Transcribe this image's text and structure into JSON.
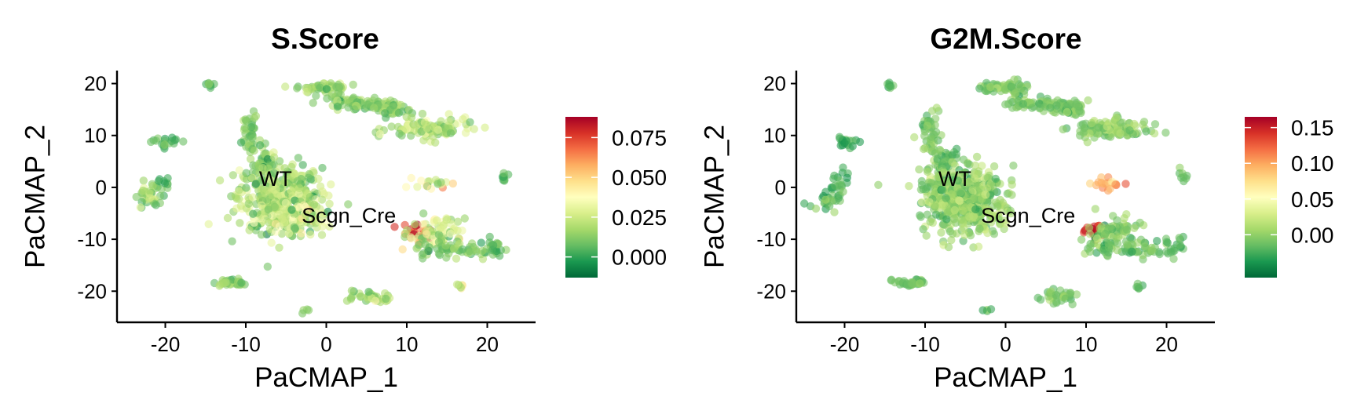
{
  "colorscale": [
    "#006837",
    "#1a9850",
    "#66bd63",
    "#a6d96a",
    "#d9ef8b",
    "#ffffbf",
    "#fee08b",
    "#fdae61",
    "#f46d43",
    "#d73027",
    "#a50026"
  ],
  "chart_data": [
    {
      "type": "scatter",
      "title": "S.Score",
      "xlabel": "PaCMAP_1",
      "ylabel": "PaCMAP_2",
      "xlim": [
        -26,
        26
      ],
      "ylim": [
        -26,
        22.5
      ],
      "xticks": [
        -20,
        -10,
        0,
        10,
        20
      ],
      "yticks": [
        -20,
        -10,
        0,
        10,
        20
      ],
      "xtick_labels": [
        "-20",
        "-10",
        "0",
        "10",
        "20"
      ],
      "ytick_labels": [
        "-20",
        "-10",
        "0",
        "10",
        "20"
      ],
      "color_range": [
        -0.013,
        0.088
      ],
      "colorbar_ticks": [
        0.0,
        0.025,
        0.05,
        0.075
      ],
      "colorbar_labels": [
        "0.000",
        "0.025",
        "0.050",
        "0.075"
      ],
      "annotations": [
        {
          "text": "WT",
          "x": -6.3,
          "y": 1.8
        },
        {
          "text": "Scgn_Cre",
          "x": 2.8,
          "y": -5.3
        }
      ],
      "clusters": [
        {
          "x": -14.5,
          "y": 19.8,
          "sx": 0.4,
          "sy": 0.3,
          "n": 8,
          "mean": 0.008,
          "sd": 0.005
        },
        {
          "x": -19.8,
          "y": 8.8,
          "sx": 1.0,
          "sy": 0.5,
          "n": 18,
          "mean": 0.006,
          "sd": 0.004
        },
        {
          "x": -20.6,
          "y": 0.8,
          "sx": 0.6,
          "sy": 1.2,
          "n": 14,
          "mean": 0.005,
          "sd": 0.004
        },
        {
          "x": -22.2,
          "y": -2.2,
          "sx": 0.8,
          "sy": 1.4,
          "n": 30,
          "mean": 0.014,
          "sd": 0.008
        },
        {
          "x": -9.5,
          "y": 10.5,
          "sx": 0.5,
          "sy": 2.2,
          "n": 40,
          "mean": 0.012,
          "sd": 0.006
        },
        {
          "x": -7.7,
          "y": 4.5,
          "sx": 0.7,
          "sy": 2.2,
          "n": 45,
          "mean": 0.012,
          "sd": 0.006
        },
        {
          "x": -5.8,
          "y": -2.0,
          "sx": 2.6,
          "sy": 3.3,
          "n": 420,
          "mean": 0.017,
          "sd": 0.009
        },
        {
          "x": -3.5,
          "y": -5.5,
          "sx": 1.8,
          "sy": 1.6,
          "n": 60,
          "mean": 0.026,
          "sd": 0.012
        },
        {
          "x": -0.6,
          "y": 19.2,
          "sx": 1.5,
          "sy": 0.5,
          "n": 50,
          "mean": 0.014,
          "sd": 0.006
        },
        {
          "x": 1.5,
          "y": 17.5,
          "sx": 0.5,
          "sy": 1.5,
          "n": 20,
          "mean": 0.012,
          "sd": 0.006
        },
        {
          "x": 4.0,
          "y": 16.2,
          "sx": 1.5,
          "sy": 0.5,
          "n": 40,
          "mean": 0.014,
          "sd": 0.006
        },
        {
          "x": 6.8,
          "y": 15.6,
          "sx": 1.4,
          "sy": 0.6,
          "n": 40,
          "mean": 0.013,
          "sd": 0.006
        },
        {
          "x": 8.5,
          "y": 14.8,
          "sx": 0.8,
          "sy": 0.7,
          "n": 20,
          "mean": 0.012,
          "sd": 0.006
        },
        {
          "x": 13.0,
          "y": 11.2,
          "sx": 2.6,
          "sy": 1.0,
          "n": 110,
          "mean": 0.019,
          "sd": 0.01
        },
        {
          "x": 12.6,
          "y": 0.7,
          "sx": 1.2,
          "sy": 0.5,
          "n": 18,
          "mean": 0.028,
          "sd": 0.015
        },
        {
          "x": 22.1,
          "y": 2.1,
          "sx": 0.3,
          "sy": 0.6,
          "n": 8,
          "mean": 0.007,
          "sd": 0.005
        },
        {
          "x": 11.2,
          "y": -8.5,
          "sx": 0.9,
          "sy": 0.7,
          "n": 24,
          "mean": 0.078,
          "sd": 0.008
        },
        {
          "x": 12.8,
          "y": -9.5,
          "sx": 1.3,
          "sy": 1.6,
          "n": 50,
          "mean": 0.025,
          "sd": 0.014
        },
        {
          "x": 14.8,
          "y": -8.0,
          "sx": 1.2,
          "sy": 1.0,
          "n": 30,
          "mean": 0.018,
          "sd": 0.01
        },
        {
          "x": 16.5,
          "y": -12.0,
          "sx": 2.8,
          "sy": 0.7,
          "n": 60,
          "mean": 0.01,
          "sd": 0.006
        },
        {
          "x": 21.0,
          "y": -11.5,
          "sx": 0.7,
          "sy": 1.0,
          "n": 16,
          "mean": 0.006,
          "sd": 0.004
        },
        {
          "x": 16.6,
          "y": -19.0,
          "sx": 0.2,
          "sy": 0.5,
          "n": 6,
          "mean": 0.045,
          "sd": 0.012
        },
        {
          "x": -11.8,
          "y": -18.3,
          "sx": 1.3,
          "sy": 0.4,
          "n": 34,
          "mean": 0.014,
          "sd": 0.006
        },
        {
          "x": 5.9,
          "y": -21.2,
          "sx": 1.3,
          "sy": 0.6,
          "n": 34,
          "mean": 0.018,
          "sd": 0.008
        },
        {
          "x": -2.4,
          "y": -23.8,
          "sx": 0.3,
          "sy": 0.3,
          "n": 4,
          "mean": 0.01,
          "sd": 0.005
        }
      ]
    },
    {
      "type": "scatter",
      "title": "G2M.Score",
      "xlabel": "PaCMAP_1",
      "ylabel": "PaCMAP_2",
      "xlim": [
        -26,
        26
      ],
      "ylim": [
        -26,
        22.5
      ],
      "xticks": [
        -20,
        -10,
        0,
        10,
        20
      ],
      "yticks": [
        -20,
        -10,
        0,
        10,
        20
      ],
      "xtick_labels": [
        "-20",
        "-10",
        "0",
        "10",
        "20"
      ],
      "ytick_labels": [
        "-20",
        "-10",
        "0",
        "10",
        "20"
      ],
      "color_range": [
        -0.06,
        0.165
      ],
      "colorbar_ticks": [
        0.0,
        0.05,
        0.1,
        0.15
      ],
      "colorbar_labels": [
        "0.00",
        "0.05",
        "0.10",
        "0.15"
      ],
      "annotations": [
        {
          "text": "WT",
          "x": -6.3,
          "y": 1.8
        },
        {
          "text": "Scgn_Cre",
          "x": 2.8,
          "y": -5.3
        }
      ],
      "clusters": [
        {
          "x": -14.5,
          "y": 19.8,
          "sx": 0.4,
          "sy": 0.3,
          "n": 8,
          "mean": -0.02,
          "sd": 0.01
        },
        {
          "x": -19.8,
          "y": 8.8,
          "sx": 1.0,
          "sy": 0.5,
          "n": 18,
          "mean": -0.025,
          "sd": 0.01
        },
        {
          "x": -20.6,
          "y": 0.8,
          "sx": 0.6,
          "sy": 1.2,
          "n": 14,
          "mean": -0.025,
          "sd": 0.01
        },
        {
          "x": -22.2,
          "y": -2.2,
          "sx": 0.8,
          "sy": 1.4,
          "n": 30,
          "mean": -0.02,
          "sd": 0.012
        },
        {
          "x": -9.5,
          "y": 10.5,
          "sx": 0.5,
          "sy": 2.2,
          "n": 40,
          "mean": -0.01,
          "sd": 0.01
        },
        {
          "x": -7.7,
          "y": 4.5,
          "sx": 0.7,
          "sy": 2.2,
          "n": 45,
          "mean": -0.008,
          "sd": 0.01
        },
        {
          "x": -5.8,
          "y": -2.0,
          "sx": 2.6,
          "sy": 3.3,
          "n": 420,
          "mean": 0.0,
          "sd": 0.014
        },
        {
          "x": -3.5,
          "y": -5.5,
          "sx": 1.8,
          "sy": 1.6,
          "n": 60,
          "mean": 0.005,
          "sd": 0.014
        },
        {
          "x": -0.6,
          "y": 19.2,
          "sx": 1.5,
          "sy": 0.5,
          "n": 50,
          "mean": -0.005,
          "sd": 0.01
        },
        {
          "x": 1.5,
          "y": 17.5,
          "sx": 0.5,
          "sy": 1.5,
          "n": 20,
          "mean": -0.01,
          "sd": 0.01
        },
        {
          "x": 4.0,
          "y": 16.2,
          "sx": 1.5,
          "sy": 0.5,
          "n": 40,
          "mean": -0.005,
          "sd": 0.01
        },
        {
          "x": 6.8,
          "y": 15.6,
          "sx": 1.4,
          "sy": 0.6,
          "n": 40,
          "mean": -0.008,
          "sd": 0.01
        },
        {
          "x": 8.5,
          "y": 14.8,
          "sx": 0.8,
          "sy": 0.7,
          "n": 20,
          "mean": -0.01,
          "sd": 0.01
        },
        {
          "x": 13.0,
          "y": 11.2,
          "sx": 2.6,
          "sy": 1.0,
          "n": 110,
          "mean": 0.0,
          "sd": 0.014
        },
        {
          "x": 12.6,
          "y": 0.7,
          "sx": 1.2,
          "sy": 0.5,
          "n": 18,
          "mean": 0.09,
          "sd": 0.02
        },
        {
          "x": 22.1,
          "y": 2.1,
          "sx": 0.3,
          "sy": 0.6,
          "n": 8,
          "mean": -0.02,
          "sd": 0.01
        },
        {
          "x": 11.2,
          "y": -8.5,
          "sx": 0.9,
          "sy": 0.7,
          "n": 24,
          "mean": 0.15,
          "sd": 0.012
        },
        {
          "x": 12.8,
          "y": -9.5,
          "sx": 1.3,
          "sy": 1.6,
          "n": 50,
          "mean": 0.005,
          "sd": 0.016
        },
        {
          "x": 14.8,
          "y": -8.0,
          "sx": 1.2,
          "sy": 1.0,
          "n": 30,
          "mean": -0.005,
          "sd": 0.012
        },
        {
          "x": 16.5,
          "y": -12.0,
          "sx": 2.8,
          "sy": 0.7,
          "n": 60,
          "mean": -0.015,
          "sd": 0.01
        },
        {
          "x": 21.0,
          "y": -11.5,
          "sx": 0.7,
          "sy": 1.0,
          "n": 16,
          "mean": -0.02,
          "sd": 0.01
        },
        {
          "x": 16.6,
          "y": -19.0,
          "sx": 0.2,
          "sy": 0.5,
          "n": 6,
          "mean": -0.02,
          "sd": 0.008
        },
        {
          "x": -11.8,
          "y": -18.3,
          "sx": 1.3,
          "sy": 0.4,
          "n": 34,
          "mean": -0.015,
          "sd": 0.01
        },
        {
          "x": 5.9,
          "y": -21.2,
          "sx": 1.3,
          "sy": 0.6,
          "n": 34,
          "mean": -0.01,
          "sd": 0.01
        },
        {
          "x": -2.4,
          "y": -23.8,
          "sx": 0.3,
          "sy": 0.3,
          "n": 4,
          "mean": -0.02,
          "sd": 0.008
        }
      ]
    }
  ]
}
